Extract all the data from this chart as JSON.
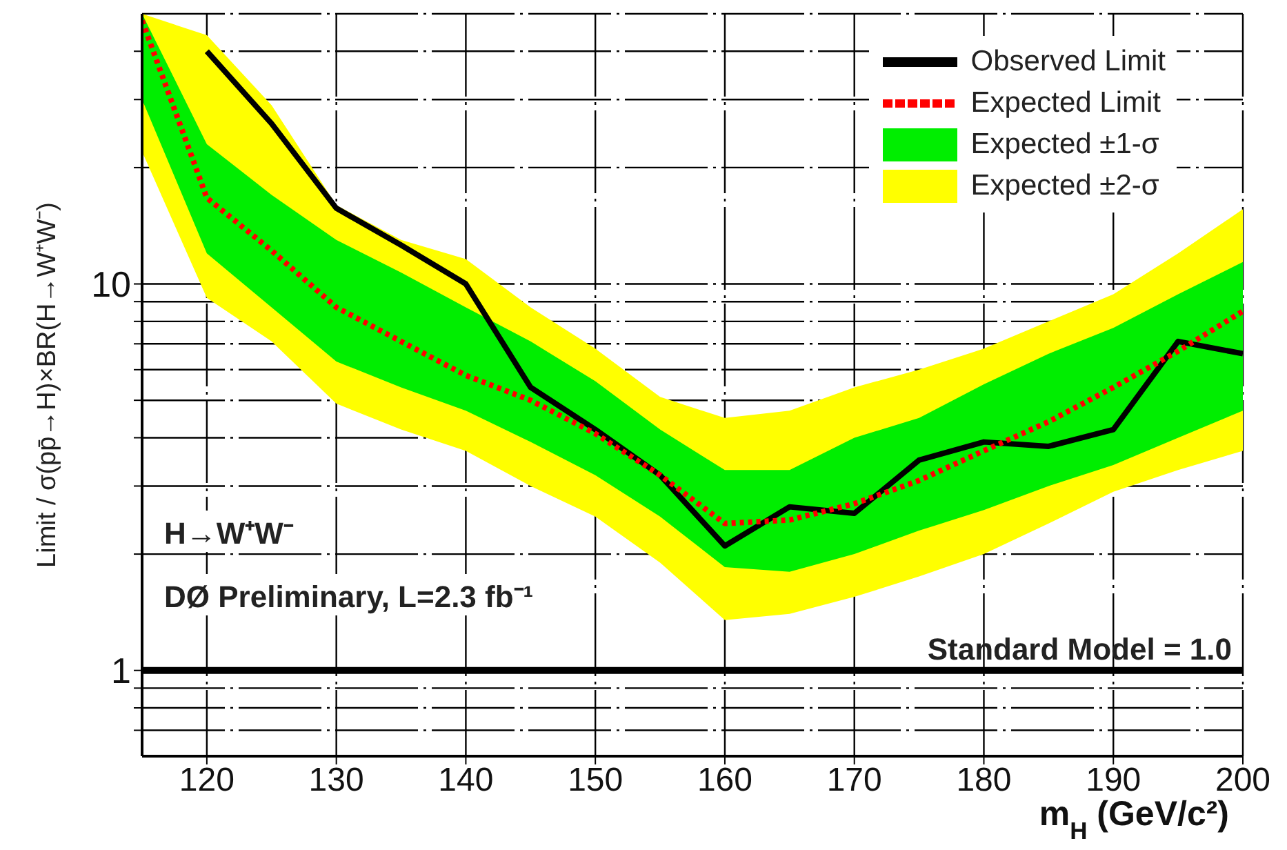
{
  "chart_data": {
    "type": "line",
    "xlabel": "m$_{H}$ (GeV/c²)",
    "ylabel": "Limit / σ(pp̄→H)×BR(H→W⁺W⁻)",
    "x": [
      115,
      120,
      125,
      130,
      135,
      140,
      145,
      150,
      155,
      160,
      165,
      170,
      175,
      180,
      185,
      190,
      195,
      200
    ],
    "series": [
      {
        "name": "Observed Limit",
        "type": "line",
        "color": "#000000",
        "line_style": "solid",
        "values": [
          null,
          40,
          26,
          15.7,
          12.6,
          10,
          5.4,
          4.2,
          3.2,
          2.1,
          2.65,
          2.55,
          3.5,
          3.9,
          3.8,
          4.2,
          7.1,
          6.6
        ]
      },
      {
        "name": "Expected Limit",
        "type": "line",
        "color": "#ff0000",
        "line_style": "dotted",
        "values": [
          48,
          16.7,
          12.2,
          8.7,
          7.1,
          5.8,
          5,
          4.1,
          3.2,
          2.4,
          2.45,
          2.7,
          3.1,
          3.7,
          4.4,
          5.4,
          6.7,
          8.5
        ]
      },
      {
        "name": "Expected ±1-σ",
        "type": "area",
        "color": "#00ee00",
        "values": [
          null,
          null,
          null,
          null,
          null,
          null,
          null,
          null,
          null,
          null,
          null,
          null,
          null,
          null,
          null,
          null,
          null,
          null
        ],
        "lower": [
          30,
          12,
          8.7,
          6.3,
          5.4,
          4.7,
          3.9,
          3.2,
          2.5,
          1.85,
          1.8,
          2.0,
          2.3,
          2.6,
          3.0,
          3.4,
          4.0,
          4.7
        ],
        "upper": [
          50,
          23,
          17,
          13,
          10.7,
          8.7,
          7.1,
          5.6,
          4.2,
          3.3,
          3.3,
          4.0,
          4.5,
          5.5,
          6.6,
          7.7,
          9.4,
          11.4
        ]
      },
      {
        "name": "Expected ±2-σ",
        "type": "area",
        "color": "#ffff00",
        "values": [
          null,
          null,
          null,
          null,
          null,
          null,
          null,
          null,
          null,
          null,
          null,
          null,
          null,
          null,
          null,
          null,
          null,
          null
        ],
        "lower": [
          22,
          9.2,
          7.1,
          4.9,
          4.2,
          3.7,
          3.0,
          2.5,
          1.9,
          1.35,
          1.4,
          1.55,
          1.75,
          2.0,
          2.4,
          2.9,
          3.3,
          3.7
        ],
        "upper": [
          50,
          44,
          29,
          16,
          13,
          11.6,
          8.7,
          6.8,
          5.1,
          4.5,
          4.7,
          5.4,
          6.0,
          6.8,
          8,
          9.4,
          12,
          15.6
        ]
      }
    ],
    "xlim": [
      115,
      200
    ],
    "xticks": [
      120,
      130,
      140,
      150,
      160,
      170,
      180,
      190,
      200
    ],
    "ylim": [
      0.6,
      50
    ],
    "log": "y",
    "yticks": [
      {
        "value": 0.7,
        "label": null
      },
      {
        "value": 0.8,
        "label": null
      },
      {
        "value": 0.9,
        "label": null
      },
      1,
      {
        "value": 2,
        "label": null
      },
      {
        "value": 3,
        "label": null
      },
      {
        "value": 4,
        "label": null
      },
      {
        "value": 5,
        "label": null
      },
      {
        "value": 6,
        "label": null
      },
      {
        "value": 7,
        "label": null
      },
      {
        "value": 8,
        "label": null
      },
      {
        "value": 9,
        "label": null
      },
      10,
      {
        "value": 20,
        "label": null
      },
      {
        "value": 30,
        "label": null
      },
      {
        "value": 40,
        "label": null
      }
    ],
    "grid": true,
    "legend": "top right",
    "marker": "none",
    "ref_lines": [
      {
        "axis": "y",
        "value": 1,
        "label": "Standard Model = 1.0",
        "color": "#000000"
      }
    ],
    "annotations": [
      "H→W⁺W⁻",
      "DØ Preliminary, L=2.3 fb⁻¹"
    ]
  }
}
